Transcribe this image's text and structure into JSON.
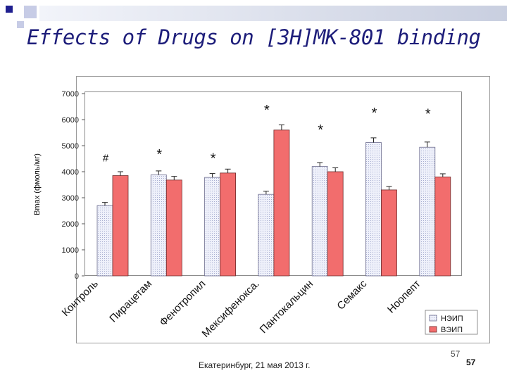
{
  "slide": {
    "title": "Effects of Drugs on [3H]MK-801 binding",
    "footer": "Екатеринбург, 21 мая 2013 г.",
    "page_number_light": "57",
    "page_number_bold": "57"
  },
  "colors": {
    "title": "#1d1d7a",
    "decor_square_dark": "#1f1f8f",
    "decor_square_light": "#c7cce6",
    "series_neip_fill": "#eef0fa",
    "series_veip_fill": "#f26d6d"
  },
  "chart_data": {
    "type": "bar",
    "ylabel": "Bmax (фмоль/мг)",
    "ylim": [
      0,
      7000
    ],
    "yticks": [
      "0",
      "1000",
      "2000",
      "3000",
      "4000",
      "5000",
      "6000",
      "7000"
    ],
    "categories": [
      "Контроль",
      "Пирацетам",
      "Фенотропил",
      "Мексифенокса.",
      "Пантокальцин",
      "Семакс",
      "Ноопепт"
    ],
    "series": [
      {
        "name": "НЭИП",
        "values": [
          2700,
          3880,
          3780,
          3130,
          4200,
          5120,
          4940
        ],
        "errors": [
          120,
          150,
          150,
          120,
          150,
          180,
          200
        ]
      },
      {
        "name": "ВЭИП",
        "values": [
          3850,
          3680,
          3950,
          5600,
          4000,
          3300,
          3800
        ],
        "errors": [
          150,
          140,
          150,
          200,
          150,
          130,
          120
        ]
      }
    ],
    "annotations": [
      {
        "text": "#",
        "category": 0,
        "y": 4550
      },
      {
        "text": "*",
        "category": 1,
        "y": 4650
      },
      {
        "text": "*",
        "category": 2,
        "y": 4500
      },
      {
        "text": "*",
        "category": 3,
        "y": 6350
      },
      {
        "text": "*",
        "category": 4,
        "y": 5600
      },
      {
        "text": "*",
        "category": 5,
        "y": 6250
      },
      {
        "text": "*",
        "category": 6,
        "y": 6200
      }
    ],
    "legend_position": "bottom-right"
  }
}
